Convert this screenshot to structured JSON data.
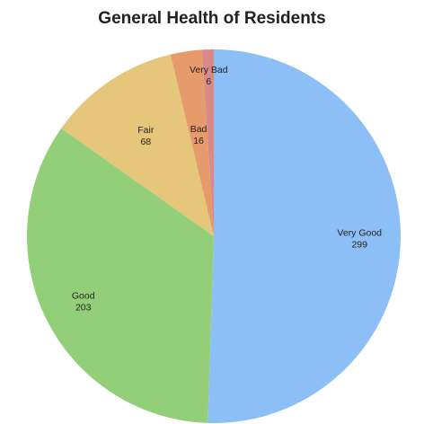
{
  "chart_data": {
    "type": "pie",
    "title": "General Health of Residents",
    "start_angle_deg": 0,
    "direction": "clockwise",
    "slices": [
      {
        "label": "Very Good",
        "value": 299,
        "color": "#8cbff5"
      },
      {
        "label": "Good",
        "value": 203,
        "color": "#93cf78"
      },
      {
        "label": "Fair",
        "value": 68,
        "color": "#e5c67a"
      },
      {
        "label": "Bad",
        "value": 16,
        "color": "#e79a6c"
      },
      {
        "label": "Very Bad",
        "value": 6,
        "color": "#d98a86"
      }
    ]
  }
}
